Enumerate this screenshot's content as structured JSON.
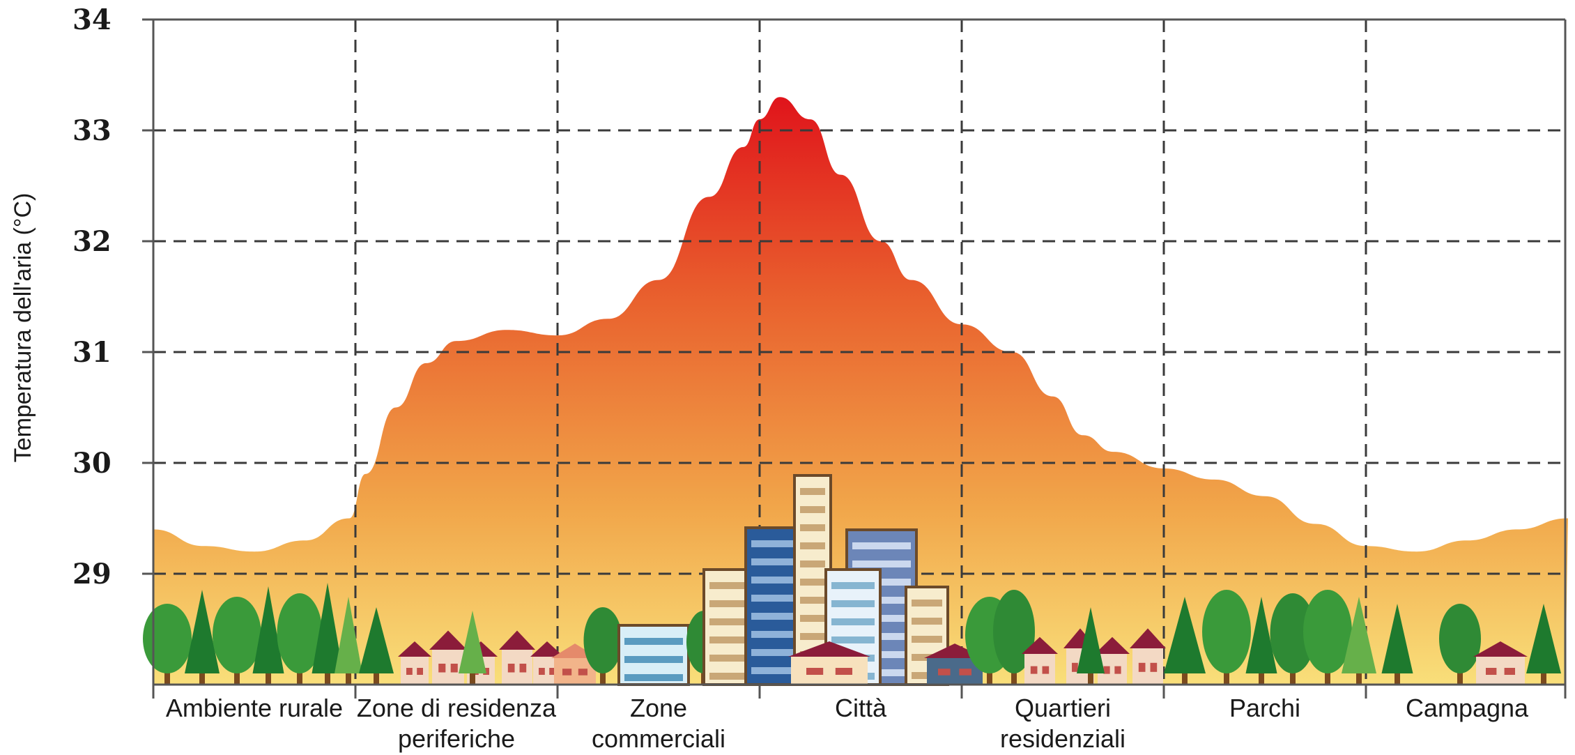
{
  "chart_data": {
    "type": "area",
    "title": "",
    "xlabel": "",
    "ylabel": "Temperatura dell'aria (°C)",
    "categories": [
      [
        "Ambiente rurale"
      ],
      [
        "Zone di residenza",
        "periferiche"
      ],
      [
        "Zone",
        "commerciali"
      ],
      [
        "Città"
      ],
      [
        "Quartieri",
        "residenziali"
      ],
      [
        "Parchi"
      ],
      [
        "Campagna"
      ]
    ],
    "yticks": [
      "29",
      "30",
      "31",
      "32",
      "33",
      "34"
    ],
    "ylim": [
      28,
      34
    ],
    "grid": true,
    "x": [
      0,
      0.25,
      0.5,
      0.75,
      0.97,
      1.05,
      1.2,
      1.35,
      1.5,
      1.75,
      2.0,
      2.25,
      2.5,
      2.75,
      2.92,
      3.0,
      3.1,
      3.25,
      3.4,
      3.6,
      3.75,
      4.0,
      4.25,
      4.45,
      4.6,
      4.75,
      5.0,
      5.25,
      5.5,
      5.75,
      6.0,
      6.25,
      6.5,
      6.75,
      7.0
    ],
    "values": [
      29.4,
      29.25,
      29.2,
      29.3,
      29.5,
      29.9,
      30.5,
      30.9,
      31.1,
      31.2,
      31.15,
      31.3,
      31.65,
      32.4,
      32.85,
      33.1,
      33.3,
      33.1,
      32.6,
      32.0,
      31.65,
      31.25,
      31.0,
      30.6,
      30.25,
      30.1,
      29.95,
      29.85,
      29.7,
      29.45,
      29.25,
      29.2,
      29.3,
      29.4,
      29.5
    ]
  }
}
